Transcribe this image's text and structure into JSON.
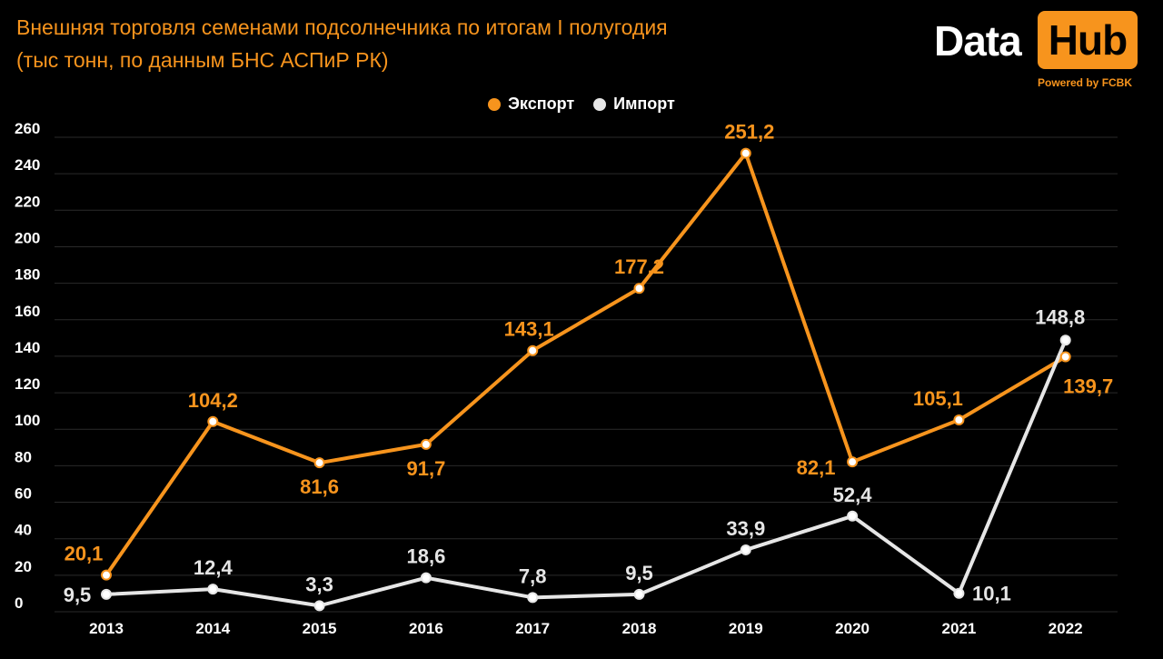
{
  "title_line1": "Внешняя торговля семенами подсолнечника по итогам I полугодия",
  "title_line2": "(тыс тонн, по данным БНС АСПиР РК)",
  "logo": {
    "word1": "Data",
    "word2": "Hub",
    "tagline": "Powered by FCBK"
  },
  "colors": {
    "export": "#f7941d",
    "import": "#e6e6e6",
    "background": "#000000",
    "grid": "#2a2a2a"
  },
  "chart_data": {
    "type": "line",
    "title": "Внешняя торговля семенами подсолнечника по итогам I полугодия (тыс тонн, по данным БНС АСПиР РК)",
    "x": [
      "2013",
      "2014",
      "2015",
      "2016",
      "2017",
      "2018",
      "2019",
      "2020",
      "2021",
      "2022"
    ],
    "ylim": [
      0,
      260
    ],
    "yticks": [
      0,
      20,
      40,
      60,
      80,
      100,
      120,
      140,
      160,
      180,
      200,
      220,
      240,
      260
    ],
    "grid": true,
    "legend_position": "top-center",
    "series": [
      {
        "name": "Экспорт",
        "values": [
          20.1,
          104.2,
          81.6,
          91.7,
          143.1,
          177.2,
          251.2,
          82.1,
          105.1,
          139.7
        ],
        "labels": [
          "20,1",
          "104,2",
          "81,6",
          "91,7",
          "143,1",
          "177,2",
          "251,2",
          "82,1",
          "105,1",
          "139,7"
        ]
      },
      {
        "name": "Импорт",
        "values": [
          9.5,
          12.4,
          3.3,
          18.6,
          7.8,
          9.5,
          33.9,
          52.4,
          10.1,
          148.8
        ],
        "labels": [
          "9,5",
          "12,4",
          "3,3",
          "18,6",
          "7,8",
          "9,5",
          "33,9",
          "52,4",
          "10,1",
          "148,8"
        ]
      }
    ]
  }
}
